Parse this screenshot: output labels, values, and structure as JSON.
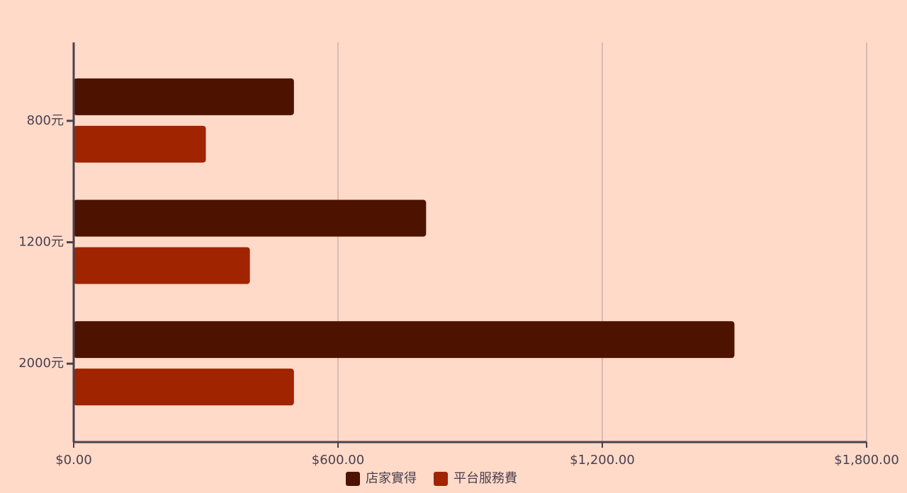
{
  "chart_data": {
    "type": "hbar",
    "categories": [
      "800元",
      "1200元",
      "2000元"
    ],
    "series": [
      {
        "name": "店家實得",
        "color": "#4e1200",
        "values": [
          500,
          800,
          1500
        ]
      },
      {
        "name": "平台服務費",
        "color": "#a02400",
        "values": [
          300,
          400,
          500
        ]
      }
    ],
    "xlim": [
      0,
      1800
    ],
    "xticks": [
      {
        "value": 0,
        "label": "$0.00"
      },
      {
        "value": 600,
        "label": "$600.00"
      },
      {
        "value": 1200,
        "label": "$1,200.00"
      },
      {
        "value": 1800,
        "label": "$1,800.00"
      }
    ],
    "grid": true,
    "legend": "bottom"
  }
}
